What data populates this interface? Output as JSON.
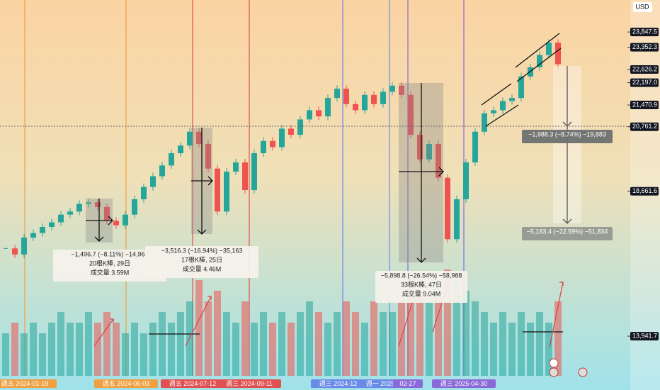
{
  "chart_data": {
    "type": "candlestick",
    "currency": "USD",
    "ylim": [
      12650,
      24890
    ],
    "yticks": [
      {
        "value": 23847.5,
        "label": "23,847.5"
      },
      {
        "value": 23352.3,
        "label": "23,352.3"
      },
      {
        "value": 22626.2,
        "label": "22,626.2"
      },
      {
        "value": 22197.0,
        "label": "22,197.0"
      },
      {
        "value": 21470.9,
        "label": "21,470.9"
      },
      {
        "value": 20761.2,
        "label": "20,761.2"
      },
      {
        "value": 18661.6,
        "label": "18,661.6"
      },
      {
        "value": 13941.7,
        "label": "13,941.7"
      }
    ],
    "up_color": "#26a69a",
    "down_color": "#ef5350",
    "series": [
      {
        "values": [
          16800,
          16600,
          17150,
          17300,
          17500,
          17650,
          17900,
          18000,
          18250,
          18300,
          18150,
          17700,
          17550,
          17900,
          18400,
          18800,
          19150,
          19500,
          19900,
          20150,
          20600,
          20200,
          19400,
          18000,
          19300,
          19600,
          18700,
          19900,
          20300,
          20100,
          20700,
          20500,
          21000,
          21300,
          21100,
          21700,
          22000,
          21500,
          21300,
          21800,
          21500,
          21900,
          22100,
          21800,
          20500,
          19700,
          20200,
          19100,
          17100,
          18400,
          19600,
          20600,
          21200,
          21300,
          21600,
          21700,
          22400,
          22700,
          23100,
          23500,
          22800
        ]
      },
      {
        "values": [
          4,
          5,
          4,
          5,
          4,
          5,
          6,
          5,
          5,
          6,
          5,
          6,
          5,
          4,
          5,
          4,
          5,
          6,
          5,
          6,
          7,
          9,
          7,
          8,
          6,
          5,
          7,
          5,
          6,
          5,
          6,
          5,
          6,
          7,
          6,
          5,
          6,
          7,
          6,
          5,
          7,
          6,
          6,
          7,
          9,
          8,
          7,
          8,
          10,
          9,
          8,
          7,
          6,
          5,
          6,
          5,
          6,
          5,
          6,
          5,
          7
        ]
      }
    ],
    "vlim": [
      0,
      18
    ],
    "markers": [
      {
        "label": "週五 2024-01-19",
        "color": "#f0a040"
      },
      {
        "label": "週五 2024-06-03",
        "color": "#f0a040"
      },
      {
        "label": "週五 2024-07-12",
        "color": "#e05050"
      },
      {
        "label": "週三 2024-09-11",
        "color": "#e05050"
      },
      {
        "label": "週三 2024-12-18",
        "color": "#6a8ae8"
      },
      {
        "label": "週一 2025-02-10",
        "color": "#6a8ae8"
      },
      {
        "label": "02-27",
        "color": "#8a6ad8"
      },
      {
        "label": "週三 2025-04-30",
        "color": "#8a6ad8"
      }
    ],
    "measures": [
      [
        "−1,496.7 (−8.11%) −14,967",
        "20根K棒, 29日",
        "成交量 3.59M"
      ],
      [
        "−3,516.3 (−16.94%) −35,163",
        "17根K棒, 25日",
        "成交量 4.46M"
      ],
      [
        "−5,898.8 (−26.54%) −58,988",
        "33根K棒, 47日",
        "成交量 9.04M"
      ],
      [
        "−1,988.3 (−8.74%) −19,883"
      ],
      [
        "−5,183.4 (−22.59%) −51,834"
      ]
    ]
  }
}
